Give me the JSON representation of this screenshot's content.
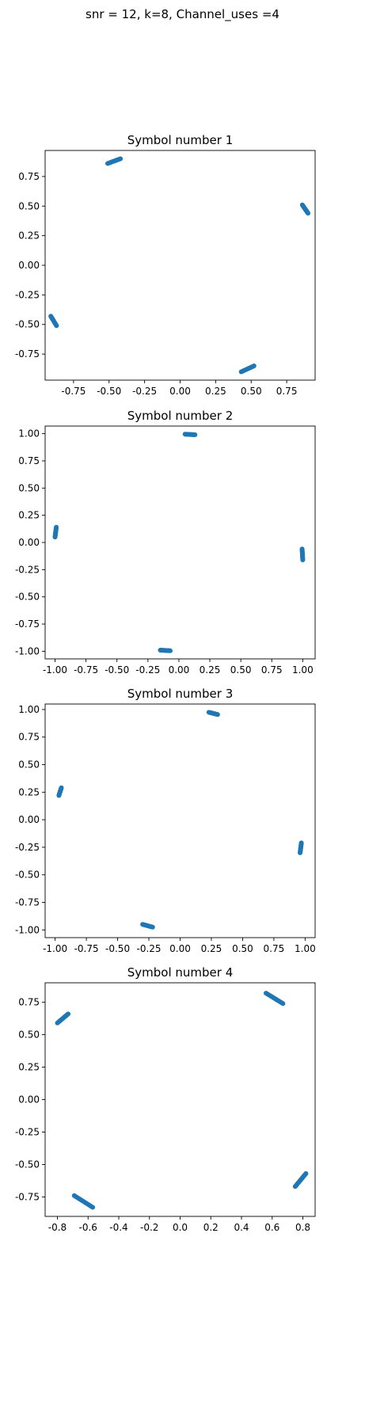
{
  "figure": {
    "suptitle": "snr = 12, k=8, Channel_uses =4"
  },
  "chart_data": [
    {
      "type": "scatter",
      "title": "Symbol number 1",
      "color": "#1f77b4",
      "xlim": [
        -0.95,
        0.95
      ],
      "ylim": [
        -0.97,
        0.97
      ],
      "xticks": [
        "-0.75",
        "-0.50",
        "-0.25",
        "0.00",
        "0.25",
        "0.50",
        "0.75"
      ],
      "xtick_values": [
        -0.75,
        -0.5,
        -0.25,
        0.0,
        0.25,
        0.5,
        0.75
      ],
      "yticks": [
        "0.75",
        "0.50",
        "0.25",
        "0.00",
        "-0.25",
        "-0.50",
        "-0.75"
      ],
      "ytick_values": [
        0.75,
        0.5,
        0.25,
        0.0,
        -0.25,
        -0.5,
        -0.75
      ],
      "clusters": [
        {
          "from": [
            -0.51,
            0.86
          ],
          "to": [
            -0.42,
            0.9
          ]
        },
        {
          "from": [
            0.86,
            0.51
          ],
          "to": [
            0.9,
            0.44
          ]
        },
        {
          "from": [
            -0.91,
            -0.43
          ],
          "to": [
            -0.87,
            -0.51
          ]
        },
        {
          "from": [
            0.43,
            -0.9
          ],
          "to": [
            0.52,
            -0.85
          ]
        }
      ]
    },
    {
      "type": "scatter",
      "title": "Symbol number 2",
      "color": "#1f77b4",
      "xlim": [
        -1.08,
        1.1
      ],
      "ylim": [
        -1.07,
        1.07
      ],
      "xticks": [
        "-1.00",
        "-0.75",
        "-0.50",
        "-0.25",
        "0.00",
        "0.25",
        "0.50",
        "0.75",
        "1.00"
      ],
      "xtick_values": [
        -1.0,
        -0.75,
        -0.5,
        -0.25,
        0.0,
        0.25,
        0.5,
        0.75,
        1.0
      ],
      "yticks": [
        "1.00",
        "0.75",
        "0.50",
        "0.25",
        "0.00",
        "-0.25",
        "-0.50",
        "-0.75",
        "-1.00"
      ],
      "ytick_values": [
        1.0,
        0.75,
        0.5,
        0.25,
        0.0,
        -0.25,
        -0.5,
        -0.75,
        -1.0
      ],
      "clusters": [
        {
          "from": [
            0.05,
            0.995
          ],
          "to": [
            0.13,
            0.99
          ]
        },
        {
          "from": [
            -1.0,
            0.05
          ],
          "to": [
            -0.99,
            0.14
          ]
        },
        {
          "from": [
            0.995,
            -0.06
          ],
          "to": [
            1.0,
            -0.16
          ]
        },
        {
          "from": [
            -0.15,
            -0.99
          ],
          "to": [
            -0.07,
            -0.995
          ]
        }
      ]
    },
    {
      "type": "scatter",
      "title": "Symbol number 3",
      "color": "#1f77b4",
      "xlim": [
        -1.08,
        1.08
      ],
      "ylim": [
        -1.07,
        1.05
      ],
      "xticks": [
        "-1.00",
        "-0.75",
        "-0.50",
        "-0.25",
        "0.00",
        "0.25",
        "0.50",
        "0.75",
        "1.00"
      ],
      "xtick_values": [
        -1.0,
        -0.75,
        -0.5,
        -0.25,
        0.0,
        0.25,
        0.5,
        0.75,
        1.0
      ],
      "yticks": [
        "1.00",
        "0.75",
        "0.50",
        "0.25",
        "0.00",
        "-0.25",
        "-0.50",
        "-0.75",
        "-1.00"
      ],
      "ytick_values": [
        1.0,
        0.75,
        0.5,
        0.25,
        0.0,
        -0.25,
        -0.5,
        -0.75,
        -1.0
      ],
      "clusters": [
        {
          "from": [
            0.23,
            0.975
          ],
          "to": [
            0.3,
            0.955
          ]
        },
        {
          "from": [
            -0.97,
            0.22
          ],
          "to": [
            -0.95,
            0.29
          ]
        },
        {
          "from": [
            0.97,
            -0.21
          ],
          "to": [
            0.96,
            -0.3
          ]
        },
        {
          "from": [
            -0.3,
            -0.95
          ],
          "to": [
            -0.22,
            -0.975
          ]
        }
      ]
    },
    {
      "type": "scatter",
      "title": "Symbol number 4",
      "color": "#1f77b4",
      "xlim": [
        -0.88,
        0.88
      ],
      "ylim": [
        -0.9,
        0.9
      ],
      "xticks": [
        "-0.8",
        "-0.6",
        "-0.4",
        "-0.2",
        "0.0",
        "0.2",
        "0.4",
        "0.6",
        "0.8"
      ],
      "xtick_values": [
        -0.8,
        -0.6,
        -0.4,
        -0.2,
        0.0,
        0.2,
        0.4,
        0.6,
        0.8
      ],
      "yticks": [
        "0.75",
        "0.50",
        "0.25",
        "0.00",
        "-0.25",
        "-0.50",
        "-0.75"
      ],
      "ytick_values": [
        0.75,
        0.5,
        0.25,
        0.0,
        -0.25,
        -0.5,
        -0.75
      ],
      "clusters": [
        {
          "from": [
            0.56,
            0.82
          ],
          "to": [
            0.67,
            0.74
          ]
        },
        {
          "from": [
            -0.8,
            0.59
          ],
          "to": [
            -0.73,
            0.66
          ]
        },
        {
          "from": [
            0.75,
            -0.67
          ],
          "to": [
            0.82,
            -0.57
          ]
        },
        {
          "from": [
            -0.69,
            -0.74
          ],
          "to": [
            -0.57,
            -0.83
          ]
        }
      ]
    }
  ]
}
